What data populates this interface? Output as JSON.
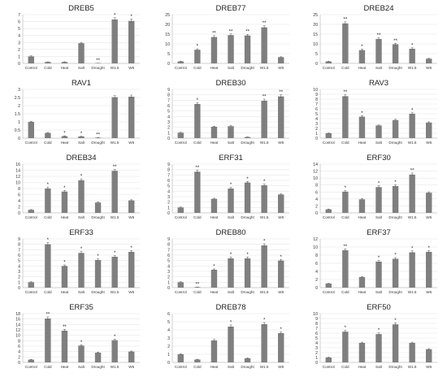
{
  "style": {
    "bar_color": "#7f7f7f",
    "axis_color": "#bfbfbf",
    "grid_color": "#e6e6e6",
    "text_color": "#333333"
  },
  "categories": [
    "Control",
    "Cold",
    "Heat",
    "Salt",
    "Drought",
    "W1.5",
    "W6"
  ],
  "chart_data": [
    {
      "type": "bar",
      "title": "DREB5",
      "ylim": [
        0,
        7
      ],
      "ticks": [
        0,
        1,
        2,
        3,
        4,
        5,
        6,
        7
      ],
      "values": [
        1.0,
        0.2,
        0.2,
        2.9,
        0.02,
        6.3,
        6.1
      ],
      "errors": [
        0.08,
        0.03,
        0.03,
        0.12,
        0.01,
        0.25,
        0.25
      ],
      "signif": [
        "",
        "",
        "",
        "",
        "**",
        "*",
        "*"
      ]
    },
    {
      "type": "bar",
      "title": "DREB77",
      "ylim": [
        0,
        25
      ],
      "ticks": [
        0,
        5,
        10,
        15,
        20,
        25
      ],
      "values": [
        1.0,
        7.0,
        13.5,
        14.5,
        14.3,
        18.5,
        3.2
      ],
      "errors": [
        0.1,
        0.5,
        0.7,
        0.6,
        0.6,
        0.8,
        0.2
      ],
      "signif": [
        "",
        "*",
        "**",
        "**",
        "**",
        "**",
        ""
      ]
    },
    {
      "type": "bar",
      "title": "DREB24",
      "ylim": [
        0,
        25
      ],
      "ticks": [
        0,
        5,
        10,
        15,
        20,
        25
      ],
      "values": [
        1.0,
        20.5,
        6.8,
        12.5,
        9.8,
        7.5,
        2.4
      ],
      "errors": [
        0.1,
        0.8,
        0.5,
        0.6,
        0.5,
        0.5,
        0.2
      ],
      "signif": [
        "",
        "**",
        "*",
        "**",
        "**",
        "*",
        ""
      ]
    },
    {
      "type": "bar",
      "title": "RAV1",
      "ylim": [
        0,
        3
      ],
      "ticks": [
        0,
        0.5,
        1,
        1.5,
        2,
        2.5,
        3
      ],
      "values": [
        1.0,
        0.32,
        0.12,
        0.1,
        0.03,
        2.52,
        2.55
      ],
      "errors": [
        0.04,
        0.03,
        0.02,
        0.02,
        0.01,
        0.1,
        0.1
      ],
      "signif": [
        "",
        "",
        "*",
        "*",
        "**",
        "",
        ""
      ]
    },
    {
      "type": "bar",
      "title": "DREB30",
      "ylim": [
        0,
        9
      ],
      "ticks": [
        0,
        1,
        2,
        3,
        4,
        5,
        6,
        7,
        8,
        9
      ],
      "values": [
        1.0,
        6.3,
        2.1,
        2.2,
        0.2,
        6.9,
        7.7
      ],
      "errors": [
        0.08,
        0.25,
        0.1,
        0.1,
        0.03,
        0.3,
        0.3
      ],
      "signif": [
        "",
        "*",
        "",
        "",
        "",
        "**",
        "**"
      ]
    },
    {
      "type": "bar",
      "title": "RAV3",
      "ylim": [
        0,
        10
      ],
      "ticks": [
        0,
        1,
        2,
        3,
        4,
        5,
        6,
        7,
        8,
        9,
        10
      ],
      "values": [
        1.0,
        8.6,
        4.4,
        2.6,
        3.7,
        5.0,
        3.2
      ],
      "errors": [
        0.08,
        0.3,
        0.2,
        0.1,
        0.15,
        0.2,
        0.15
      ],
      "signif": [
        "",
        "**",
        "*",
        "",
        "",
        "*",
        ""
      ]
    },
    {
      "type": "bar",
      "title": "DREB34",
      "ylim": [
        0,
        16
      ],
      "ticks": [
        0,
        2,
        4,
        6,
        8,
        10,
        12,
        14,
        16
      ],
      "values": [
        1.0,
        8.0,
        7.0,
        10.7,
        3.4,
        13.8,
        4.1
      ],
      "errors": [
        0.1,
        0.4,
        0.35,
        0.45,
        0.2,
        0.5,
        0.2
      ],
      "signif": [
        "",
        "*",
        "*",
        "*",
        "",
        "**",
        ""
      ]
    },
    {
      "type": "bar",
      "title": "ERF31",
      "ylim": [
        0,
        9
      ],
      "ticks": [
        0,
        1,
        2,
        3,
        4,
        5,
        6,
        7,
        8,
        9
      ],
      "values": [
        1.0,
        7.6,
        2.6,
        4.5,
        5.6,
        5.1,
        3.4
      ],
      "errors": [
        0.08,
        0.3,
        0.1,
        0.2,
        0.2,
        0.2,
        0.12
      ],
      "signif": [
        "",
        "**",
        "",
        "*",
        "*",
        "*",
        ""
      ]
    },
    {
      "type": "bar",
      "title": "ERF30",
      "ylim": [
        0,
        14
      ],
      "ticks": [
        0,
        2,
        4,
        6,
        8,
        10,
        12,
        14
      ],
      "values": [
        1.0,
        6.1,
        3.9,
        7.4,
        7.7,
        11.0,
        5.8
      ],
      "errors": [
        0.1,
        0.3,
        0.2,
        0.35,
        0.35,
        0.45,
        0.25
      ],
      "signif": [
        "",
        "*",
        "",
        "*",
        "*",
        "**",
        ""
      ]
    },
    {
      "type": "bar",
      "title": "ERF33",
      "ylim": [
        0,
        9
      ],
      "ticks": [
        0,
        1,
        2,
        3,
        4,
        5,
        6,
        7,
        8,
        9
      ],
      "values": [
        1.0,
        8.0,
        4.0,
        6.4,
        5.1,
        5.7,
        6.6
      ],
      "errors": [
        0.08,
        0.3,
        0.2,
        0.25,
        0.2,
        0.2,
        0.25
      ],
      "signif": [
        "",
        "*",
        "*",
        "*",
        "*",
        "*",
        "*"
      ]
    },
    {
      "type": "bar",
      "title": "DREB80",
      "ylim": [
        0,
        9
      ],
      "ticks": [
        0,
        1,
        2,
        3,
        4,
        5,
        6,
        7,
        8,
        9
      ],
      "values": [
        1.0,
        0.1,
        3.3,
        5.4,
        5.4,
        7.8,
        5.0
      ],
      "errors": [
        0.08,
        0.02,
        0.15,
        0.25,
        0.25,
        0.3,
        0.2
      ],
      "signif": [
        "",
        "**",
        "*",
        "*",
        "*",
        "*",
        "*"
      ]
    },
    {
      "type": "bar",
      "title": "ERF37",
      "ylim": [
        0,
        12
      ],
      "ticks": [
        0,
        2,
        4,
        6,
        8,
        10,
        12
      ],
      "values": [
        1.0,
        9.2,
        2.6,
        6.4,
        7.1,
        8.7,
        8.8
      ],
      "errors": [
        0.08,
        0.35,
        0.12,
        0.3,
        0.3,
        0.35,
        0.35
      ],
      "signif": [
        "",
        "**",
        "",
        "*",
        "*",
        "*",
        "*"
      ]
    },
    {
      "type": "bar",
      "title": "ERF35",
      "ylim": [
        0,
        18
      ],
      "ticks": [
        0,
        2,
        4,
        6,
        8,
        10,
        12,
        14,
        16,
        18
      ],
      "values": [
        1.0,
        16.2,
        11.7,
        6.2,
        3.6,
        8.2,
        4.0
      ],
      "errors": [
        0.1,
        0.6,
        0.5,
        0.3,
        0.2,
        0.35,
        0.2
      ],
      "signif": [
        "",
        "**",
        "**",
        "*",
        "",
        "*",
        ""
      ]
    },
    {
      "type": "bar",
      "title": "DREB78",
      "ylim": [
        0,
        6
      ],
      "ticks": [
        0,
        1,
        2,
        3,
        4,
        5,
        6
      ],
      "values": [
        1.0,
        0.35,
        2.7,
        4.4,
        0.5,
        4.7,
        3.6
      ],
      "errors": [
        0.06,
        0.04,
        0.12,
        0.2,
        0.05,
        0.2,
        0.15
      ],
      "signif": [
        "",
        "",
        "",
        "*",
        "",
        "*",
        "*"
      ]
    },
    {
      "type": "bar",
      "title": "ERF50",
      "ylim": [
        0,
        10
      ],
      "ticks": [
        0,
        1,
        2,
        3,
        4,
        5,
        6,
        7,
        8,
        9,
        10
      ],
      "values": [
        1.0,
        6.3,
        4.0,
        5.8,
        7.8,
        4.0,
        2.7
      ],
      "errors": [
        0.08,
        0.25,
        0.15,
        0.25,
        0.3,
        0.15,
        0.12
      ],
      "signif": [
        "",
        "*",
        "",
        "*",
        "*",
        "",
        ""
      ]
    }
  ]
}
